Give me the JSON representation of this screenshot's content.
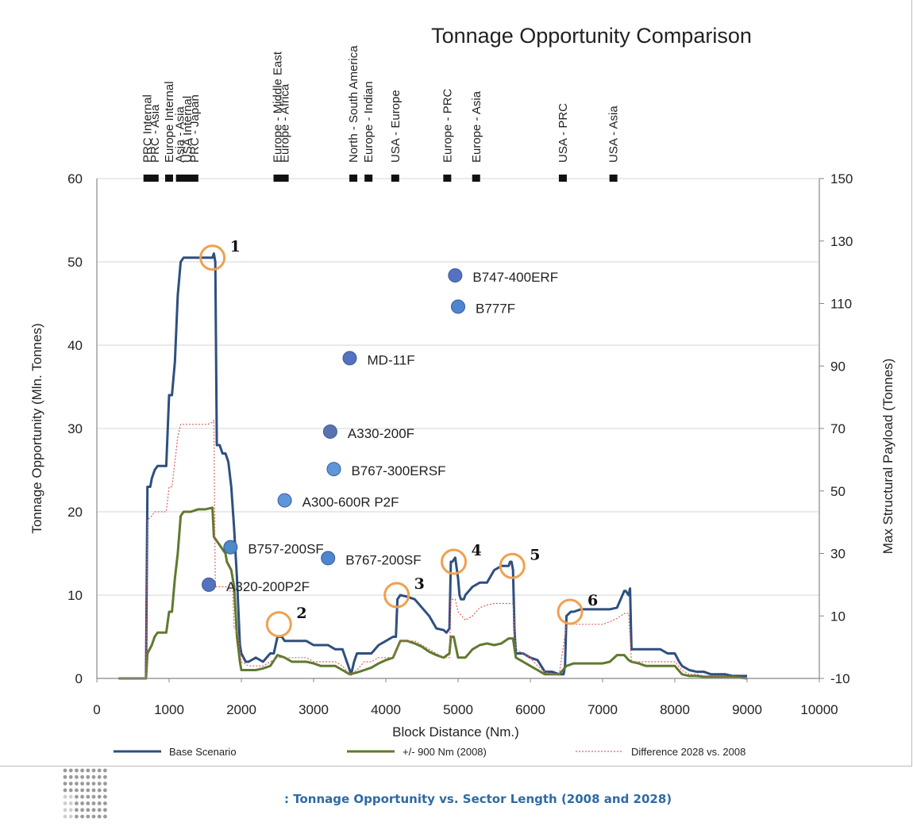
{
  "chart_data": {
    "type": "line",
    "title": "Tonnage Opportunity Comparison",
    "xlabel": "Block Distance (Nm.)",
    "ylabel": "Tonnage Opportunity (Mln. Tonnes)",
    "y2label": "Max Structural Payload (Tonnes)",
    "xlim": [
      0,
      10000
    ],
    "ylim": [
      0,
      60
    ],
    "y2lim": [
      -10,
      150
    ],
    "xticks": [
      "0",
      "1000",
      "2000",
      "3000",
      "4000",
      "5000",
      "6000",
      "7000",
      "8000",
      "9000",
      "10000"
    ],
    "yticks": [
      "0",
      "10",
      "20",
      "30",
      "40",
      "50",
      "60"
    ],
    "y2ticks": [
      "-10",
      "10",
      "30",
      "50",
      "70",
      "90",
      "110",
      "130",
      "150"
    ],
    "grid": "horizontal",
    "legend_position": "bottom",
    "series": [
      {
        "name": "Base Scenario",
        "color": "#2f4f7f",
        "style": "solid",
        "width": 3,
        "x": [
          300,
          680,
          700,
          740,
          760,
          800,
          840,
          880,
          920,
          960,
          1000,
          1040,
          1080,
          1120,
          1160,
          1200,
          1260,
          1300,
          1360,
          1400,
          1460,
          1500,
          1540,
          1580,
          1600,
          1620,
          1640,
          1660,
          1700,
          1740,
          1780,
          1820,
          1860,
          1900,
          1940,
          1980,
          2000,
          2060,
          2100,
          2200,
          2300,
          2400,
          2450,
          2500,
          2520,
          2560,
          2600,
          2640,
          2700,
          2800,
          2900,
          3000,
          3100,
          3200,
          3300,
          3400,
          3500,
          3520,
          3560,
          3600,
          3700,
          3800,
          3900,
          4000,
          4100,
          4140,
          4160,
          4200,
          4300,
          4400,
          4500,
          4600,
          4700,
          4800,
          4840,
          4880,
          4900,
          4920,
          4960,
          5000,
          5020,
          5040,
          5080,
          5100,
          5200,
          5300,
          5400,
          5500,
          5600,
          5700,
          5720,
          5740,
          5760,
          5780,
          5800,
          5900,
          6000,
          6100,
          6200,
          6300,
          6400,
          6460,
          6480,
          6500,
          6560,
          6600,
          6700,
          6800,
          6900,
          7000,
          7100,
          7200,
          7300,
          7320,
          7360,
          7380,
          7400,
          7500,
          7600,
          7700,
          7800,
          7900,
          8000,
          8060,
          8100,
          8200,
          8300,
          8400,
          8500,
          8600,
          8700,
          8800,
          8900,
          9000
        ],
        "y": [
          0,
          0,
          23,
          23,
          24,
          25,
          25.5,
          25.5,
          25.5,
          25.5,
          34,
          34,
          38,
          46,
          50,
          50.5,
          50.5,
          50.5,
          50.5,
          50.5,
          50.5,
          50.5,
          50.5,
          50.5,
          50.5,
          51,
          50,
          28,
          28,
          27,
          27,
          26,
          23,
          18,
          12,
          4,
          3,
          2,
          2,
          2.5,
          2,
          3,
          3,
          5,
          5,
          5,
          4.5,
          4.5,
          4.5,
          4.5,
          4.5,
          4,
          4,
          4,
          3.5,
          3.5,
          1,
          0.5,
          2,
          3,
          3,
          3,
          4,
          4.5,
          5,
          5,
          9.5,
          10,
          9.8,
          9.5,
          8.5,
          7.5,
          6,
          5.8,
          5.5,
          6,
          14,
          14,
          14.5,
          12,
          10,
          9.5,
          9.5,
          10,
          11,
          11.5,
          11.5,
          13,
          13.5,
          13.5,
          14,
          14,
          13,
          6,
          3,
          3,
          2.5,
          2.2,
          0.8,
          0.8,
          0.5,
          0.5,
          1.5,
          7.5,
          8,
          8,
          8.3,
          8.3,
          8.3,
          8.3,
          8.3,
          8.5,
          10.5,
          10.5,
          10,
          10.8,
          3.5,
          3.5,
          3.5,
          3.5,
          3.5,
          3,
          3,
          2,
          1.5,
          1,
          0.8,
          0.8,
          0.5,
          0.5,
          0.5,
          0.3,
          0.3,
          0.3
        ]
      },
      {
        "name": "+/- 900 Nm (2008)",
        "color": "#5e7a2e",
        "style": "solid",
        "width": 3,
        "x": [
          300,
          680,
          700,
          760,
          800,
          840,
          900,
          960,
          1000,
          1040,
          1080,
          1120,
          1160,
          1200,
          1300,
          1400,
          1500,
          1600,
          1620,
          1660,
          1700,
          1780,
          1800,
          1860,
          1900,
          1940,
          1980,
          2000,
          2100,
          2200,
          2300,
          2400,
          2500,
          2600,
          2700,
          2800,
          2900,
          3000,
          3100,
          3200,
          3300,
          3400,
          3500,
          3600,
          3700,
          3800,
          3900,
          4000,
          4100,
          4200,
          4300,
          4400,
          4500,
          4600,
          4700,
          4800,
          4880,
          4900,
          4940,
          5000,
          5100,
          5200,
          5300,
          5400,
          5500,
          5600,
          5700,
          5760,
          5800,
          5900,
          6000,
          6100,
          6200,
          6300,
          6400,
          6500,
          6600,
          6700,
          6800,
          6900,
          7000,
          7100,
          7200,
          7300,
          7360,
          7400,
          7500,
          7600,
          7700,
          7800,
          7900,
          8000,
          8100,
          8200,
          8300,
          8400,
          8500,
          8600,
          8700,
          8800,
          8900,
          9000
        ],
        "y": [
          0,
          0,
          3,
          4,
          5,
          5.5,
          5.5,
          5.5,
          8,
          8,
          12,
          15,
          19.5,
          20,
          20,
          20.3,
          20.3,
          20.5,
          17,
          16.5,
          16,
          15,
          14,
          13,
          11,
          5,
          2,
          1,
          1,
          1,
          1.2,
          1.5,
          2.8,
          2.5,
          2,
          2,
          2,
          1.8,
          1.5,
          1.5,
          1.5,
          1,
          0.5,
          0.7,
          1,
          1.3,
          1.8,
          2.2,
          2.5,
          4.5,
          4.5,
          4.2,
          3.8,
          3.2,
          2.8,
          2.5,
          3,
          5,
          5,
          2.5,
          2.5,
          3.5,
          4,
          4.2,
          4,
          4.2,
          4.8,
          4.8,
          2.5,
          2,
          1.5,
          1,
          0.5,
          0.5,
          0.5,
          1.5,
          1.8,
          1.8,
          1.8,
          1.8,
          1.8,
          2,
          2.8,
          2.8,
          2.2,
          2,
          1.8,
          1.5,
          1.5,
          1.5,
          1.5,
          1.5,
          0.5,
          0.3,
          0.3,
          0.2,
          0.2,
          0.2,
          0.2,
          0.2,
          0.1,
          0
        ]
      },
      {
        "name": "Difference 2028 vs. 2008",
        "color": "#e06060",
        "style": "dotted",
        "width": 1.2,
        "x": [
          300,
          680,
          700,
          760,
          800,
          840,
          900,
          960,
          1000,
          1040,
          1080,
          1120,
          1160,
          1200,
          1300,
          1400,
          1500,
          1540,
          1580,
          1600,
          1620,
          1640,
          1700,
          1760,
          1800,
          1840,
          1880,
          1900,
          1920,
          1960,
          2000,
          2100,
          2200,
          2300,
          2400,
          2500,
          2600,
          2700,
          2800,
          2900,
          3000,
          3100,
          3200,
          3300,
          3400,
          3500,
          3600,
          3700,
          3800,
          3900,
          4000,
          4100,
          4200,
          4300,
          4400,
          4500,
          4600,
          4700,
          4800,
          4880,
          4900,
          4960,
          5000,
          5100,
          5200,
          5300,
          5400,
          5500,
          5600,
          5700,
          5760,
          5800,
          5900,
          6000,
          6100,
          6200,
          6300,
          6400,
          6500,
          6600,
          6700,
          6800,
          6900,
          7000,
          7100,
          7200,
          7300,
          7360,
          7400,
          7500,
          7600,
          7700,
          7800,
          7900,
          8000,
          8100,
          8200,
          8300,
          8400,
          8500,
          8600,
          8700,
          8800,
          8900,
          9000
        ],
        "y": [
          0,
          0,
          19,
          19.5,
          20,
          20,
          20,
          20,
          23,
          23,
          26,
          29,
          30.5,
          30.5,
          30.5,
          30.5,
          30.5,
          30.5,
          30.7,
          30.7,
          31,
          11,
          11,
          11,
          11,
          10.5,
          10.5,
          6,
          6,
          5,
          2,
          1.5,
          1.5,
          1.5,
          2,
          2.5,
          2.5,
          2.5,
          2.5,
          2.5,
          2,
          2,
          2,
          2,
          1.5,
          0.5,
          1,
          2,
          2,
          2.5,
          2.5,
          2.5,
          4.5,
          4.5,
          4.5,
          4,
          3.5,
          3,
          2.5,
          2.5,
          9.5,
          9.5,
          8,
          7,
          7.5,
          8.5,
          8.8,
          9,
          9,
          9,
          9,
          3.5,
          3,
          2.5,
          1.5,
          0.8,
          0.5,
          0.5,
          6.5,
          6.5,
          6.5,
          6.5,
          6.5,
          6.5,
          6.8,
          7.2,
          7.8,
          7.8,
          2,
          2,
          2,
          2,
          2,
          2,
          2,
          1,
          0.5,
          0.5,
          0.3,
          0.3,
          0.2,
          0.2,
          0.1,
          0.1,
          0
        ]
      }
    ],
    "aircraft_points": [
      {
        "label": "B747-400ERF",
        "x": 4960,
        "y2": 119,
        "color": "#5572c0"
      },
      {
        "label": "B777F",
        "x": 5000,
        "y2": 109,
        "color": "#4d86cf"
      },
      {
        "label": "MD-11F",
        "x": 3500,
        "y2": 92.5,
        "color": "#5572c0"
      },
      {
        "label": "A330-200F",
        "x": 3230,
        "y2": 69,
        "color": "#5a72b0"
      },
      {
        "label": "B767-300ERSF",
        "x": 3280,
        "y2": 57,
        "color": "#5e96da"
      },
      {
        "label": "A300-600R P2F",
        "x": 2600,
        "y2": 47,
        "color": "#5e96da"
      },
      {
        "label": "B757-200SF",
        "x": 1850,
        "y2": 32,
        "color": "#4d8ac8"
      },
      {
        "label": "B767-200SF",
        "x": 3200,
        "y2": 28.5,
        "color": "#4d86cf"
      },
      {
        "label": "A320-200P2F",
        "x": 1550,
        "y2": 20,
        "color": "#5572c0"
      }
    ],
    "highlight_markers": [
      {
        "label": "1",
        "x": 1600,
        "y": 50.5
      },
      {
        "label": "2",
        "x": 2520,
        "y": 6.5
      },
      {
        "label": "3",
        "x": 4150,
        "y": 10
      },
      {
        "label": "4",
        "x": 4940,
        "y": 14
      },
      {
        "label": "5",
        "x": 5750,
        "y": 13.5
      },
      {
        "label": "6",
        "x": 6550,
        "y": 8
      }
    ],
    "route_markers": [
      {
        "label": "PRC Internal",
        "x": 700
      },
      {
        "label": "PRC - Asia",
        "x": 800
      },
      {
        "label": "Europe Internal",
        "x": 1000
      },
      {
        "label": "Asia - Asia",
        "x": 1150
      },
      {
        "label": "USA Internal",
        "x": 1250
      },
      {
        "label": "PRC - Japan",
        "x": 1350
      },
      {
        "label": "Europe - Middle East",
        "x": 2500
      },
      {
        "label": "Europe - Africa",
        "x": 2600
      },
      {
        "label": "North - South America",
        "x": 3550
      },
      {
        "label": "Europe - Indian",
        "x": 3760
      },
      {
        "label": "USA - Europe",
        "x": 4130
      },
      {
        "label": "Europe - PRC",
        "x": 4850
      },
      {
        "label": "Europe - Asia",
        "x": 5250
      },
      {
        "label": "USA - PRC",
        "x": 6450
      },
      {
        "label": "USA - Asia",
        "x": 7150
      }
    ],
    "caption": ": Tonnage Opportunity vs. Sector Length (2008 and 2028)"
  }
}
